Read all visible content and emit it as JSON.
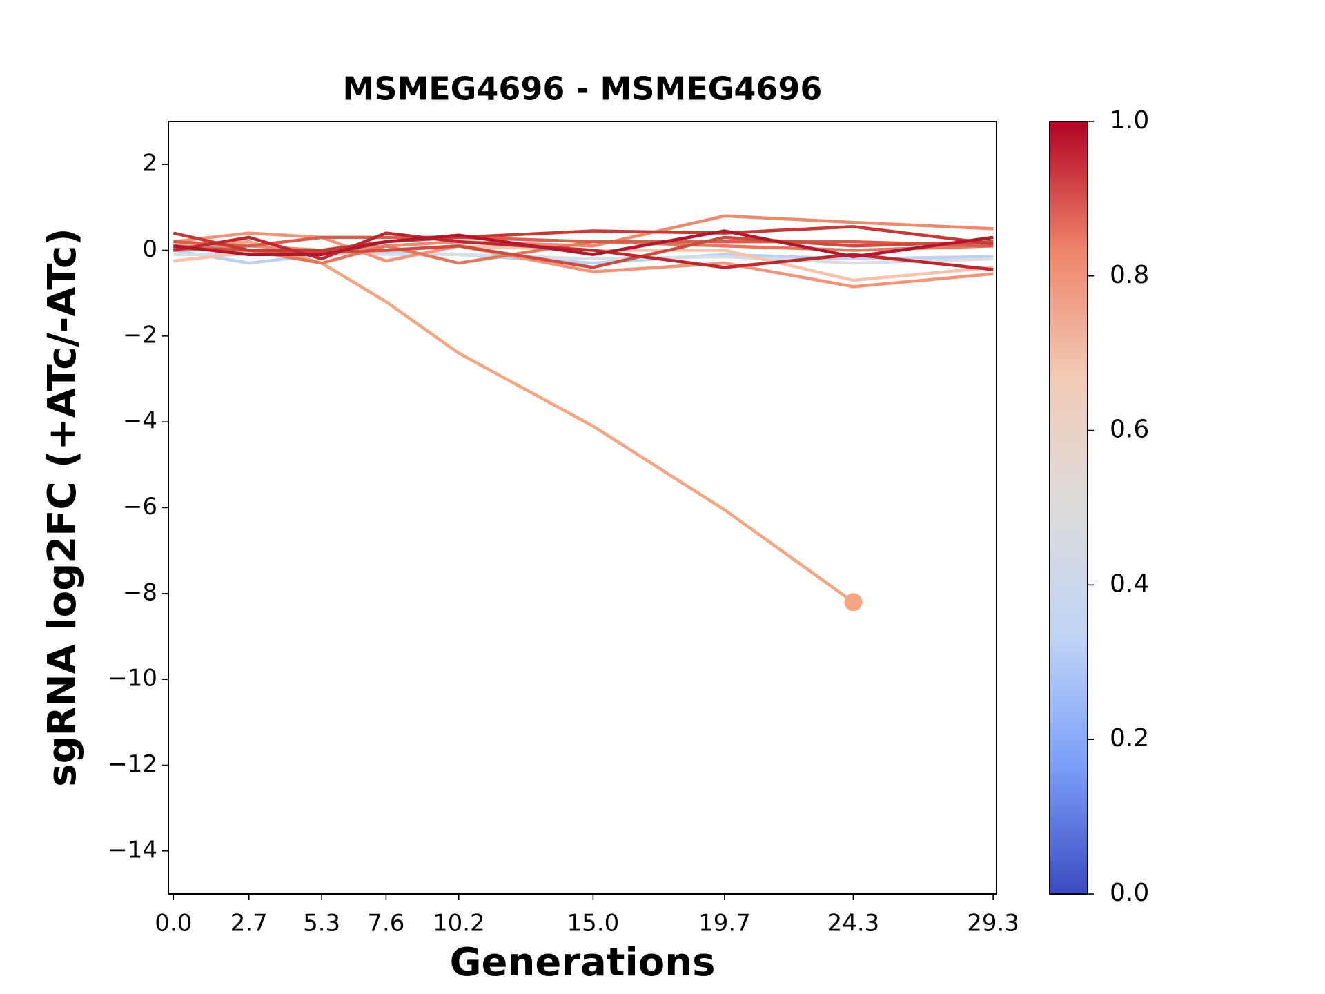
{
  "chart_data": {
    "type": "line",
    "title": "MSMEG4696 - MSMEG4696",
    "xlabel": "Generations",
    "ylabel": "sgRNA log2FC (+ATc/-ATc)",
    "x": [
      0.0,
      2.7,
      5.3,
      7.6,
      10.2,
      15.0,
      19.7,
      24.3,
      29.3
    ],
    "xlim": [
      -0.18,
      29.42
    ],
    "xticks": [
      {
        "value": 0,
        "label": "0.0"
      },
      2.7,
      5.3,
      7.6,
      10.2,
      {
        "value": 15,
        "label": "15.0"
      },
      19.7,
      24.3,
      29.3
    ],
    "ylim": [
      -15,
      3
    ],
    "yticks": [
      {
        "value": -14,
        "label": "−14"
      },
      {
        "value": -12,
        "label": "−12"
      },
      {
        "value": -10,
        "label": "−10"
      },
      {
        "value": -8,
        "label": "−8"
      },
      {
        "value": -6,
        "label": "−6"
      },
      {
        "value": -4,
        "label": "−4"
      },
      {
        "value": -2,
        "label": "−2"
      },
      0,
      2
    ],
    "series": [
      {
        "color": "#bcd0f2",
        "values": [
          0.0,
          -0.3,
          -0.1,
          -0.05,
          -0.1,
          -0.3,
          -0.1,
          -0.2,
          -0.15
        ]
      },
      {
        "color": "#d8dce5",
        "values": [
          -0.1,
          -0.1,
          0.0,
          -0.1,
          -0.1,
          -0.2,
          -0.15,
          -0.3,
          -0.2
        ]
      },
      {
        "color": "#f7c4ab",
        "values": [
          -0.25,
          -0.05,
          -0.1,
          0.0,
          0.1,
          0.0,
          0.0,
          -0.7,
          -0.4
        ]
      },
      {
        "color": "#f4a582",
        "values": [
          0.1,
          0.2,
          -0.3,
          -1.2,
          -2.4,
          -4.1,
          -6.05,
          -8.2,
          null
        ],
        "end_marker": true
      },
      {
        "color": "#f0957a",
        "values": [
          0.2,
          0.4,
          0.3,
          -0.25,
          0.1,
          -0.5,
          -0.3,
          -0.85,
          -0.55
        ]
      },
      {
        "color": "#eb8a6e",
        "values": [
          0.0,
          0.1,
          0.0,
          0.1,
          0.2,
          0.1,
          0.8,
          0.65,
          0.5
        ]
      },
      {
        "color": "#e07860",
        "values": [
          0.1,
          0.0,
          -0.3,
          0.1,
          -0.3,
          0.2,
          0.1,
          0.0,
          0.1
        ]
      },
      {
        "color": "#d6604d",
        "values": [
          0.2,
          0.1,
          0.3,
          0.3,
          0.3,
          0.2,
          0.2,
          0.2,
          0.1
        ]
      },
      {
        "color": "#cc4c3f",
        "values": [
          0.05,
          0.0,
          -0.05,
          0.0,
          0.1,
          -0.4,
          0.3,
          0.1,
          0.2
        ]
      },
      {
        "color": "#c43a36",
        "values": [
          0.4,
          0.0,
          0.0,
          0.2,
          0.3,
          0.45,
          0.4,
          0.55,
          0.15
        ]
      },
      {
        "color": "#bb2a30",
        "values": [
          0.0,
          0.3,
          -0.2,
          0.4,
          0.2,
          0.0,
          -0.4,
          -0.1,
          -0.45
        ]
      },
      {
        "color": "#b2182b",
        "values": [
          0.1,
          -0.1,
          -0.1,
          0.2,
          0.35,
          -0.1,
          0.45,
          -0.15,
          0.3
        ]
      }
    ],
    "colorbar": {
      "colors": [
        "#3b4cc0",
        "#7b9ff9",
        "#c0d4f5",
        "#dddcdc",
        "#f2cbb7",
        "#ee8468",
        "#b40426"
      ],
      "ylim": [
        0,
        1
      ],
      "yticks": [
        {
          "value": 0,
          "label": "0.0"
        },
        0.2,
        0.4,
        0.6,
        0.8,
        {
          "value": 1,
          "label": "1.0"
        }
      ]
    }
  }
}
